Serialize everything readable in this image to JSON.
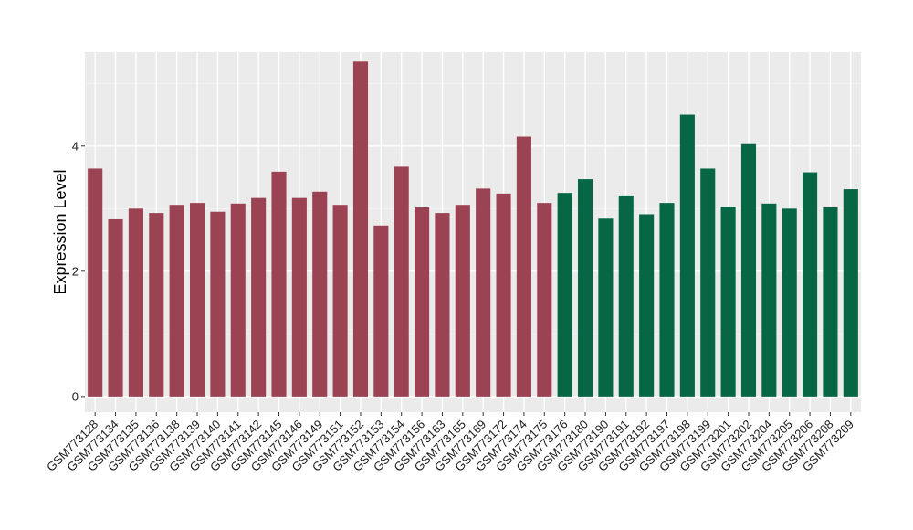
{
  "chart_data": {
    "type": "bar",
    "title": "",
    "xlabel": "",
    "ylabel": "Expression Level",
    "ylim": [
      -0.25,
      5.5
    ],
    "yticks": [
      0,
      2,
      4
    ],
    "grid": true,
    "legend": "none",
    "colors": {
      "panel_bg": "#EBEBEB",
      "grid_major": "#FFFFFF",
      "grid_minor": "#F5F5F5",
      "group_a": "#9B4352",
      "group_b": "#076745"
    },
    "categories": [
      "GSM773128",
      "GSM773134",
      "GSM773135",
      "GSM773136",
      "GSM773138",
      "GSM773139",
      "GSM773140",
      "GSM773141",
      "GSM773142",
      "GSM773145",
      "GSM773146",
      "GSM773149",
      "GSM773151",
      "GSM773152",
      "GSM773153",
      "GSM773154",
      "GSM773156",
      "GSM773163",
      "GSM773165",
      "GSM773169",
      "GSM773172",
      "GSM773174",
      "GSM773175",
      "GSM773176",
      "GSM773180",
      "GSM773190",
      "GSM773191",
      "GSM773192",
      "GSM773197",
      "GSM773198",
      "GSM773199",
      "GSM773201",
      "GSM773202",
      "GSM773204",
      "GSM773205",
      "GSM773206",
      "GSM773208",
      "GSM773209"
    ],
    "values": [
      3.64,
      2.83,
      3.0,
      2.93,
      3.06,
      3.09,
      2.95,
      3.08,
      3.17,
      3.59,
      3.17,
      3.27,
      3.06,
      5.35,
      2.73,
      3.67,
      3.02,
      2.93,
      3.06,
      3.32,
      3.24,
      4.15,
      3.09,
      3.25,
      3.47,
      2.84,
      3.21,
      2.91,
      3.09,
      4.5,
      3.64,
      3.03,
      4.03,
      3.08,
      3.0,
      3.58,
      3.02,
      3.31
    ],
    "groups": [
      "a",
      "a",
      "a",
      "a",
      "a",
      "a",
      "a",
      "a",
      "a",
      "a",
      "a",
      "a",
      "a",
      "a",
      "a",
      "a",
      "a",
      "a",
      "a",
      "a",
      "a",
      "a",
      "a",
      "b",
      "b",
      "b",
      "b",
      "b",
      "b",
      "b",
      "b",
      "b",
      "b",
      "b",
      "b",
      "b",
      "b",
      "b"
    ]
  }
}
